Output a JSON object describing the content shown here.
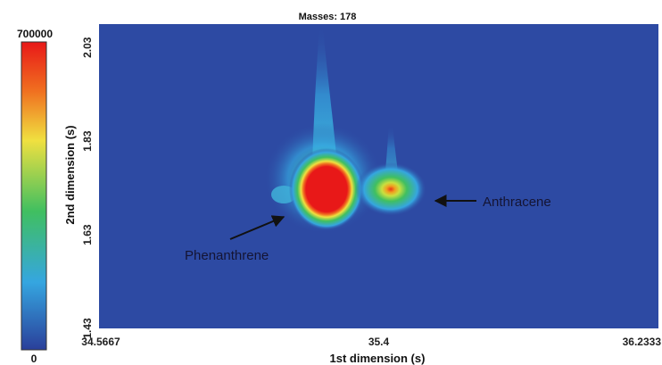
{
  "chart_data": {
    "type": "heatmap",
    "title": "Masses: 178",
    "xlabel": "1st dimension (s)",
    "ylabel": "2nd dimension (s)",
    "xlim": [
      34.5667,
      36.2333
    ],
    "ylim": [
      1.43,
      2.08
    ],
    "x_ticks": [
      "34.5667",
      "35.4",
      "36.2333"
    ],
    "x_tick_values": [
      34.5667,
      35.4,
      36.2333
    ],
    "y_ticks": [
      "1.43",
      "1.63",
      "1.83",
      "2.03"
    ],
    "y_tick_values": [
      1.43,
      1.63,
      1.83,
      2.03
    ],
    "colorbar": {
      "min": 0,
      "max": 700000,
      "min_label": "0",
      "max_label": "700000",
      "colors": [
        "#2a3f9a",
        "#35a6e0",
        "#40bf60",
        "#f0e040",
        "#f07020",
        "#e81818"
      ]
    },
    "background_color": "#2d4aa3",
    "peaks": [
      {
        "name": "Phenanthrene",
        "x": 35.32,
        "y": 1.7,
        "intensity": 700000
      },
      {
        "name": "Anthracene",
        "x": 35.46,
        "y": 1.71,
        "intensity": 420000
      }
    ],
    "annotations": [
      {
        "text": "Phenanthrene",
        "label": "Phenanthrene"
      },
      {
        "text": "Anthracene",
        "label": "Anthracene"
      }
    ]
  }
}
